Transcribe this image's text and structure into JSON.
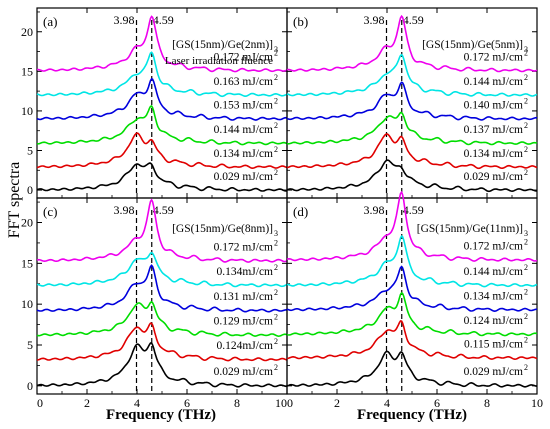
{
  "figure": {
    "ylabel": "FFT spectra",
    "xlabel": "Frequency (THz)"
  },
  "chart_data": [
    {
      "type": "line",
      "panel_label": "(a)",
      "sample": "[GS(15nm)/Ge(2nm)]",
      "sample_sub": "3",
      "legend_heading": "Laser irradiation fluence",
      "markers": [
        3.98,
        4.59
      ],
      "marker_labels": [
        "3.98",
        "4.59"
      ],
      "xlim": [
        0,
        10
      ],
      "ylim": [
        -1,
        23
      ],
      "xticks": [
        0,
        2,
        4,
        6,
        8,
        10
      ],
      "xticklabels": [
        "0",
        "2",
        "4",
        "6",
        "8",
        "10"
      ],
      "yticks": [
        0,
        5,
        10,
        15,
        20
      ],
      "yticklabels": [
        "0",
        "5",
        "10",
        "15",
        "20"
      ],
      "grid": false,
      "series": [
        {
          "name": "0.029 mJ/cm",
          "name_sup": "2",
          "color": "#000000",
          "offset": 0.0,
          "peak1": 2.6,
          "peak2": 1.9
        },
        {
          "name": "0.134 mJ/cm",
          "name_sup": "2",
          "color": "#e00000",
          "offset": 2.9,
          "peak1": 3.3,
          "peak2": 1.8
        },
        {
          "name": "0.144 mJ/cm",
          "name_sup": "2",
          "color": "#00dd00",
          "offset": 5.9,
          "peak1": 2.3,
          "peak2": 3.3
        },
        {
          "name": "0.153 mJ/cm",
          "name_sup": "2",
          "color": "#0000dd",
          "offset": 9.0,
          "peak1": 2.2,
          "peak2": 3.8
        },
        {
          "name": "0.163 mJ/cm",
          "name_sup": "2",
          "color": "#00e5e5",
          "offset": 12.0,
          "peak1": 1.8,
          "peak2": 4.3
        },
        {
          "name": "0.172 mJ/cm",
          "name_sup": "2",
          "color": "#ee00ee",
          "offset": 15.1,
          "peak1": 1.7,
          "peak2": 5.9
        }
      ]
    },
    {
      "type": "line",
      "panel_label": "(b)",
      "sample": "[GS(15nm)/Ge(5nm)]",
      "sample_sub": "3",
      "legend_heading": "",
      "markers": [
        3.98,
        4.59
      ],
      "marker_labels": [
        "3.98",
        "4.59"
      ],
      "xlim": [
        0,
        10
      ],
      "ylim": [
        -1,
        23
      ],
      "xticks": [
        0,
        2,
        4,
        6,
        8,
        10
      ],
      "xticklabels": [
        "0",
        "2",
        "4",
        "6",
        "8",
        "10"
      ],
      "yticks": [
        0,
        5,
        10,
        15,
        20
      ],
      "yticklabels": [
        "",
        "",
        "",
        "",
        ""
      ],
      "grid": false,
      "series": [
        {
          "name": "0.029 mJ/cm",
          "name_sup": "2",
          "color": "#000000",
          "offset": 0.0,
          "peak1": 3.0,
          "peak2": 1.5
        },
        {
          "name": "0.134 mJ/cm",
          "name_sup": "2",
          "color": "#e00000",
          "offset": 2.9,
          "peak1": 3.3,
          "peak2": 2.0
        },
        {
          "name": "0.137 mJ/cm",
          "name_sup": "2",
          "color": "#00dd00",
          "offset": 5.9,
          "peak1": 2.5,
          "peak2": 2.6
        },
        {
          "name": "0.140 mJ/cm",
          "name_sup": "2",
          "color": "#0000dd",
          "offset": 9.0,
          "peak1": 2.2,
          "peak2": 3.2
        },
        {
          "name": "0.144 mJ/cm",
          "name_sup": "2",
          "color": "#00e5e5",
          "offset": 12.0,
          "peak1": 1.8,
          "peak2": 4.2
        },
        {
          "name": "0.172 mJ/cm",
          "name_sup": "2",
          "color": "#ee00ee",
          "offset": 15.1,
          "peak1": 1.8,
          "peak2": 5.7
        }
      ]
    },
    {
      "type": "line",
      "panel_label": "(c)",
      "sample": "[GS(15nm)/Ge(8nm)]",
      "sample_sub": "3",
      "legend_heading": "",
      "markers": [
        3.98,
        4.59
      ],
      "marker_labels": [
        "3.98",
        "4.59"
      ],
      "xlim": [
        0,
        10
      ],
      "ylim": [
        -1,
        23
      ],
      "xticks": [
        0,
        2,
        4,
        6,
        8,
        10
      ],
      "xticklabels": [
        "0",
        "2",
        "4",
        "6",
        "8",
        "10"
      ],
      "yticks": [
        0,
        5,
        10,
        15,
        20
      ],
      "yticklabels": [
        "0",
        "5",
        "10",
        "15",
        "20"
      ],
      "grid": false,
      "series": [
        {
          "name": "0.029 mJ/cm",
          "name_sup": "2",
          "color": "#000000",
          "offset": 0.0,
          "peak1": 3.9,
          "peak2": 3.6
        },
        {
          "name": "0.124mJ/cm",
          "name_sup": "2",
          "color": "#e00000",
          "offset": 3.2,
          "peak1": 3.2,
          "peak2": 2.6
        },
        {
          "name": "0.129 mJ/cm",
          "name_sup": "2",
          "color": "#00dd00",
          "offset": 6.2,
          "peak1": 2.9,
          "peak2": 2.7
        },
        {
          "name": "0.131 mJ/cm",
          "name_sup": "2",
          "color": "#0000dd",
          "offset": 9.2,
          "peak1": 2.5,
          "peak2": 4.0
        },
        {
          "name": "0.134mJ/cm",
          "name_sup": "2",
          "color": "#00e5e5",
          "offset": 12.3,
          "peak1": 2.3,
          "peak2": 3.0
        },
        {
          "name": "0.172 mJ/cm",
          "name_sup": "2",
          "color": "#ee00ee",
          "offset": 15.3,
          "peak1": 1.6,
          "peak2": 6.3
        }
      ]
    },
    {
      "type": "line",
      "panel_label": "(d)",
      "sample": "[GS(15nm)/Ge(11nm)]",
      "sample_sub": "3",
      "legend_heading": "",
      "markers": [
        3.98,
        4.59
      ],
      "marker_labels": [
        "3.98",
        "4.59"
      ],
      "xlim": [
        0,
        10
      ],
      "ylim": [
        -1,
        23
      ],
      "xticks": [
        0,
        2,
        4,
        6,
        8,
        10
      ],
      "xticklabels": [
        "0",
        "2",
        "4",
        "6",
        "8",
        "10"
      ],
      "yticks": [
        0,
        5,
        10,
        15,
        20
      ],
      "yticklabels": [
        "",
        "",
        "",
        "",
        ""
      ],
      "grid": false,
      "series": [
        {
          "name": "0.029 mJ/cm",
          "name_sup": "2",
          "color": "#000000",
          "offset": 0.0,
          "peak1": 3.1,
          "peak2": 2.6
        },
        {
          "name": "0.115 mJ/cm",
          "name_sup": "2",
          "color": "#e00000",
          "offset": 3.4,
          "peak1": 2.6,
          "peak2": 3.0
        },
        {
          "name": "0.124 mJ/cm",
          "name_sup": "2",
          "color": "#00dd00",
          "offset": 6.3,
          "peak1": 2.2,
          "peak2": 3.8
        },
        {
          "name": "0.134 mJ/cm",
          "name_sup": "2",
          "color": "#0000dd",
          "offset": 9.3,
          "peak1": 1.6,
          "peak2": 4.2
        },
        {
          "name": "0.144 mJ/cm",
          "name_sup": "2",
          "color": "#00e5e5",
          "offset": 12.3,
          "peak1": 1.7,
          "peak2": 5.1
        },
        {
          "name": "0.172 mJ/cm",
          "name_sup": "2",
          "color": "#ee00ee",
          "offset": 15.4,
          "peak1": 1.8,
          "peak2": 7.2
        }
      ]
    }
  ]
}
